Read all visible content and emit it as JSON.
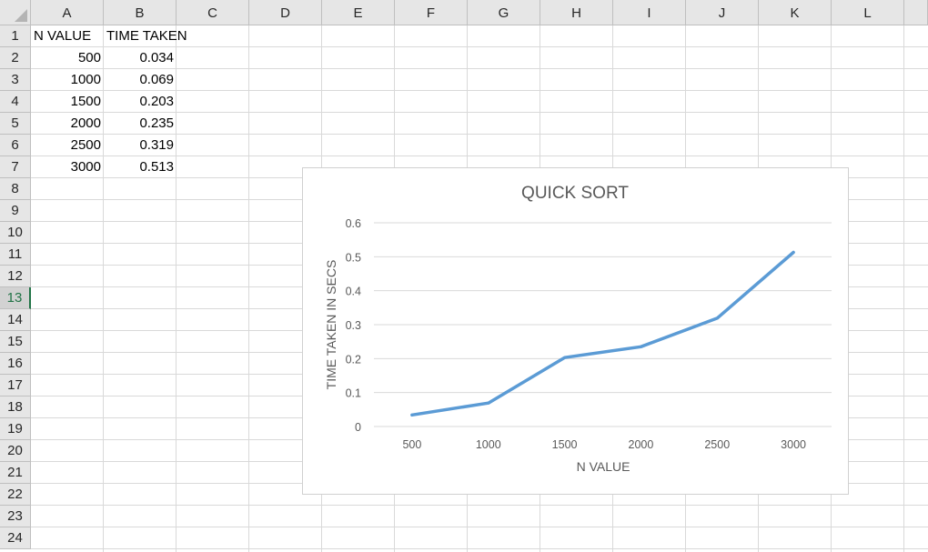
{
  "columns": [
    "A",
    "B",
    "C",
    "D",
    "E",
    "F",
    "G",
    "H",
    "I",
    "J",
    "K",
    "L"
  ],
  "rows": [
    "1",
    "2",
    "3",
    "4",
    "5",
    "6",
    "7",
    "8",
    "9",
    "10",
    "11",
    "12",
    "13",
    "14",
    "15",
    "16",
    "17",
    "18",
    "19",
    "20",
    "21",
    "22",
    "23",
    "24"
  ],
  "active_row": "13",
  "cells": {
    "A1": "N VALUE",
    "B1": "TIME TAKEN",
    "A2": "500",
    "B2": "0.034",
    "A3": "1000",
    "B3": "0.069",
    "A4": "1500",
    "B4": "0.203",
    "A5": "2000",
    "B5": "0.235",
    "A6": "2500",
    "B6": "0.319",
    "A7": "3000",
    "B7": "0.513"
  },
  "chart_data": {
    "type": "line",
    "title": "QUICK SORT",
    "xlabel": "N VALUE",
    "ylabel": "TIME TAKEN IN SECS",
    "categories": [
      "500",
      "1000",
      "1500",
      "2000",
      "2500",
      "3000"
    ],
    "series": [
      {
        "values": [
          0.034,
          0.069,
          0.203,
          0.235,
          0.319,
          0.513
        ],
        "color": "#5b9bd5"
      }
    ],
    "ylim": [
      0,
      0.6
    ],
    "yticks": [
      "0",
      "0.1",
      "0.2",
      "0.3",
      "0.4",
      "0.5",
      "0.6"
    ],
    "grid": true,
    "legend": "none"
  }
}
